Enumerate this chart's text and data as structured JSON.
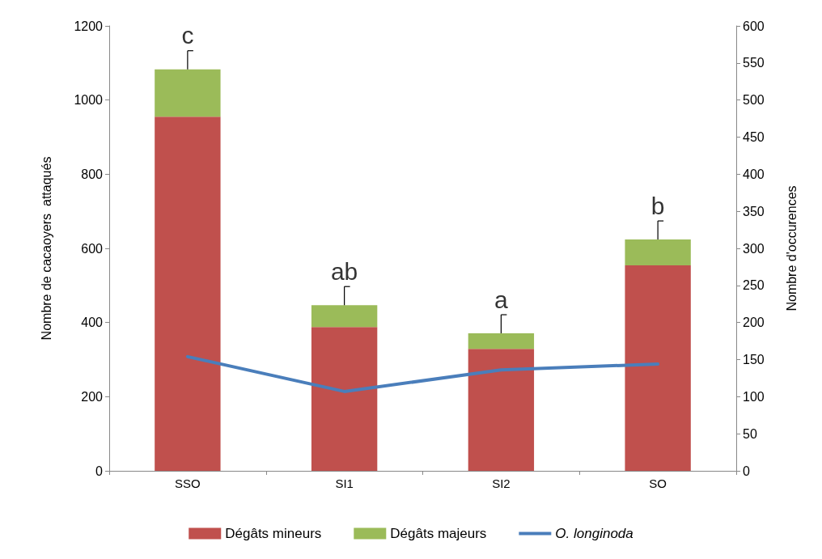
{
  "chart_data": {
    "type": "bar",
    "stacked": true,
    "ylabel": "Nombre de cacaoyers  attaqués",
    "y2label": "Nombre d'occurences",
    "categories": [
      "SSO",
      "SI1",
      "SI2",
      "SO"
    ],
    "series": [
      {
        "name": "Dégâts mineurs",
        "color": "#c0504d",
        "values": [
          955,
          388,
          329,
          554
        ]
      },
      {
        "name": "Dégâts majeurs",
        "color": "#9bbb59",
        "values": [
          128,
          59,
          42,
          70
        ],
        "errors": [
          [
            1083,
            1133
          ],
          [
            447,
            497
          ],
          [
            371,
            421
          ],
          [
            624,
            674
          ]
        ]
      },
      {
        "name": "O. longinoda",
        "type": "line",
        "axis": "y2",
        "color": "#4a7ebb",
        "values": [
          154,
          107,
          136,
          144
        ]
      }
    ],
    "ylim": [
      0,
      1200
    ],
    "yticks": [
      0,
      200,
      400,
      600,
      800,
      1000,
      1200
    ],
    "y2lim": [
      0,
      600
    ],
    "y2ticks": [
      0,
      50,
      100,
      150,
      200,
      250,
      300,
      350,
      400,
      450,
      500,
      550,
      600
    ],
    "annotations": [
      "c",
      "ab",
      "a",
      "b"
    ],
    "grid": false,
    "legend": "bottom",
    "marker": "none",
    "line_style": "solid"
  }
}
